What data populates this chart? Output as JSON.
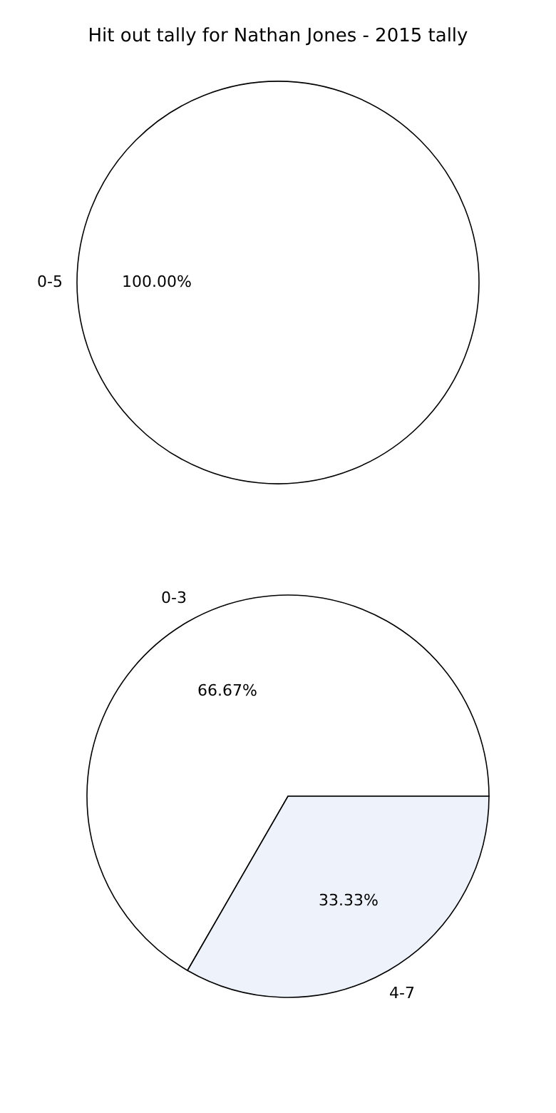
{
  "chart_data": [
    {
      "type": "pie",
      "title": "Hit out tally for Nathan Jones - 2015 tally",
      "categories": [
        "0-5"
      ],
      "values": [
        100
      ],
      "colors": [
        "#ffffff"
      ],
      "value_labels": [
        "100.00%"
      ]
    },
    {
      "type": "pie",
      "categories": [
        "0-3",
        "4-7"
      ],
      "values": [
        66.67,
        33.33
      ],
      "colors": [
        "#ffffff",
        "#eef2fb"
      ],
      "value_labels": [
        "66.67%",
        "33.33%"
      ]
    }
  ]
}
